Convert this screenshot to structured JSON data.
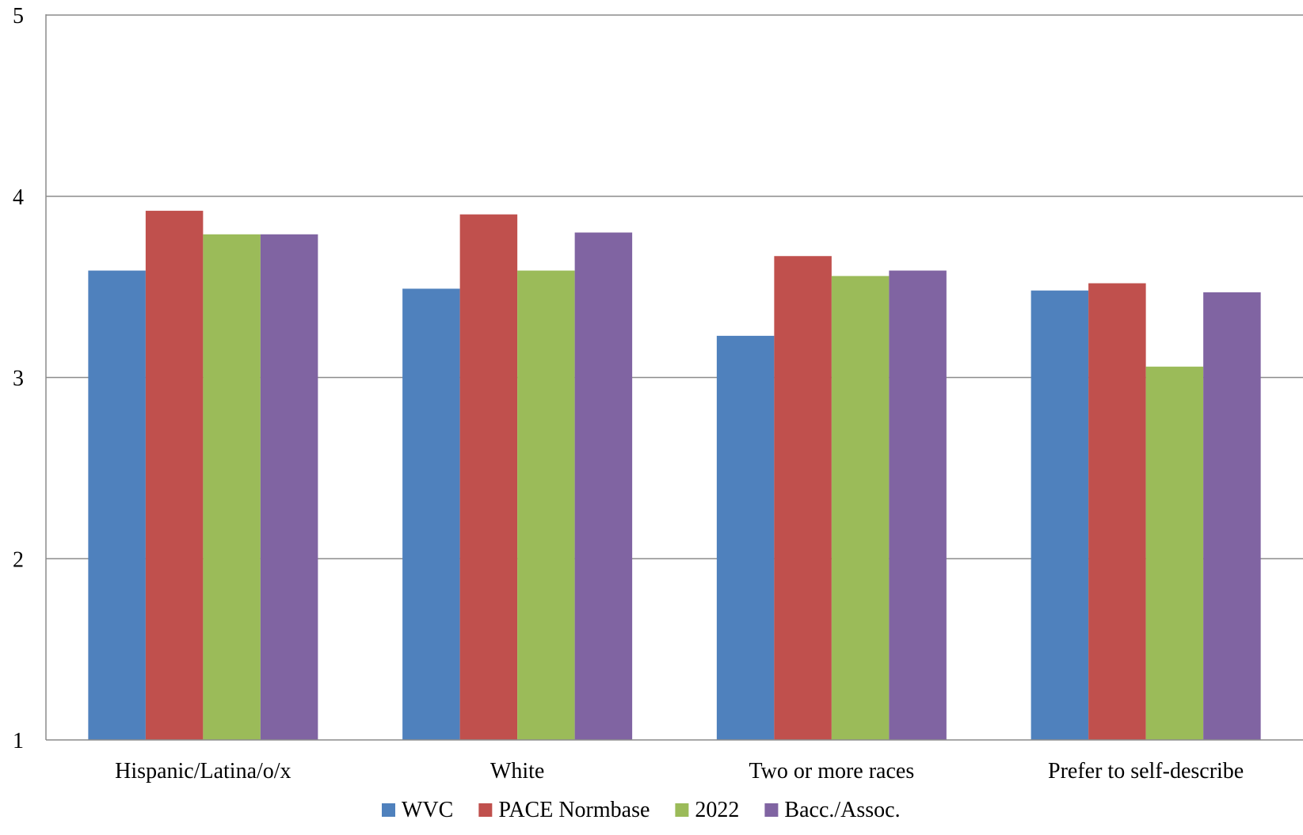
{
  "chart_data": {
    "type": "bar",
    "title": "",
    "xlabel": "",
    "ylabel": "",
    "ylim": [
      1,
      5
    ],
    "yticks": [
      "1",
      "2",
      "3",
      "4",
      "5"
    ],
    "grid": true,
    "legend_position": "bottom",
    "categories": [
      "Hispanic/Latina/o/x",
      "White",
      "Two or more races",
      "Prefer to self-describe"
    ],
    "series": [
      {
        "name": "WVC",
        "color": "#4F81BD",
        "values": [
          3.59,
          3.49,
          3.23,
          3.48
        ]
      },
      {
        "name": "PACE Normbase",
        "color": "#C0504D",
        "values": [
          3.92,
          3.9,
          3.67,
          3.52
        ]
      },
      {
        "name": "2022",
        "color": "#9BBB59",
        "values": [
          3.79,
          3.59,
          3.56,
          3.06
        ]
      },
      {
        "name": "Bacc./Assoc.",
        "color": "#8064A2",
        "values": [
          3.79,
          3.8,
          3.59,
          3.47
        ]
      }
    ]
  }
}
